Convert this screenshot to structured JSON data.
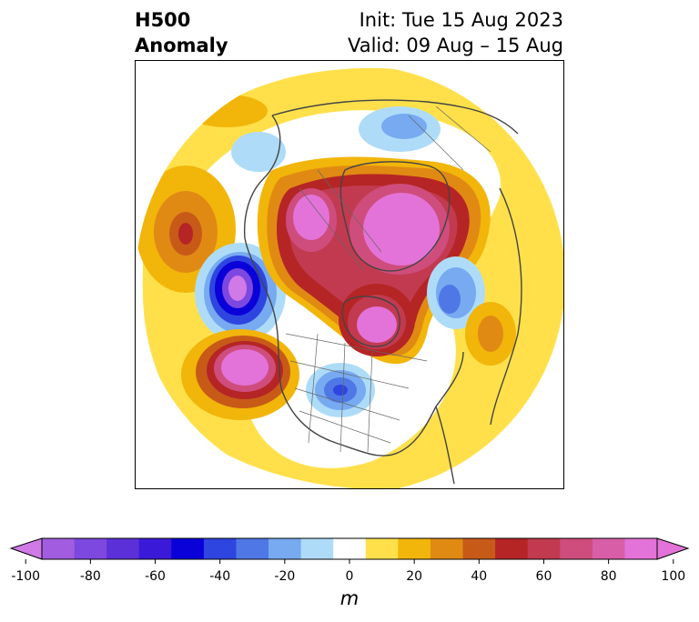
{
  "title": {
    "left_line1": "H500",
    "left_line2": "Anomaly",
    "right_line1": "Init: Tue 15 Aug 2023",
    "right_line2": "Valid: 09 Aug – 15 Aug"
  },
  "colorbar": {
    "units": "m",
    "ticks": [
      "-100",
      "-80",
      "-60",
      "-40",
      "-20",
      "0",
      "20",
      "40",
      "60",
      "80",
      "100"
    ],
    "bins": [
      {
        "range": "-100 to -90",
        "color": "#a25ce0"
      },
      {
        "range": "-90 to -80",
        "color": "#7d48e0"
      },
      {
        "range": "-80 to -70",
        "color": "#5c30d8"
      },
      {
        "range": "-70 to -60",
        "color": "#3a1ad8"
      },
      {
        "range": "-60 to -50",
        "color": "#0a00d8"
      },
      {
        "range": "-50 to -40",
        "color": "#2e45e0"
      },
      {
        "range": "-40 to -30",
        "color": "#4f78e6"
      },
      {
        "range": "-30 to -20",
        "color": "#77aaf0"
      },
      {
        "range": "-20 to -10",
        "color": "#aedcf8"
      },
      {
        "range": "-10 to 10",
        "color": "#ffffff"
      },
      {
        "range": "10 to 20",
        "color": "#ffe04a"
      },
      {
        "range": "20 to 30",
        "color": "#f2b50a"
      },
      {
        "range": "30 to 40",
        "color": "#e08a14"
      },
      {
        "range": "40 to 50",
        "color": "#c85a18"
      },
      {
        "range": "50 to 60",
        "color": "#b52525"
      },
      {
        "range": "60 to 70",
        "color": "#c23a50"
      },
      {
        "range": "70 to 80",
        "color": "#cf4d7c"
      },
      {
        "range": "80 to 90",
        "color": "#d85ea8"
      },
      {
        "range": "90 to 100",
        "color": "#e373d8"
      }
    ],
    "extend_low_color": "#d07ae8",
    "extend_high_color": "#e373d8"
  },
  "map": {
    "projection": "north polar stereographic",
    "anomaly_centers": [
      {
        "location": "Northern Canada / Arctic Archipelago",
        "sign": "positive",
        "peak_m": 100
      },
      {
        "location": "Greenland",
        "sign": "positive",
        "peak_m": 100
      },
      {
        "location": "Hudson Bay",
        "sign": "positive",
        "peak_m": 90
      },
      {
        "location": "Eastern North Pacific",
        "sign": "positive",
        "peak_m": 100
      },
      {
        "location": "Gulf of Alaska",
        "sign": "negative",
        "peak_m": -70
      },
      {
        "location": "Central United States",
        "sign": "negative",
        "peak_m": -50
      },
      {
        "location": "North Atlantic",
        "sign": "negative",
        "peak_m": -40
      },
      {
        "location": "Siberia",
        "sign": "negative",
        "peak_m": -30
      },
      {
        "location": "Bering Sea",
        "sign": "positive",
        "peak_m": 60
      },
      {
        "location": "Eastern Atlantic",
        "sign": "positive",
        "peak_m": 40
      }
    ]
  }
}
